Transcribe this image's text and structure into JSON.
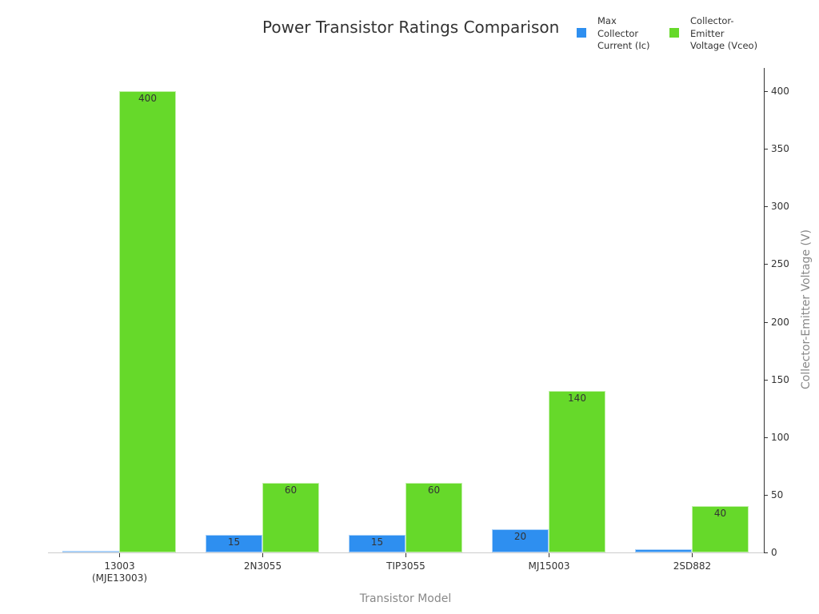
{
  "chart_data": {
    "type": "bar",
    "title": "Power Transistor Ratings Comparison",
    "xlabel": "Transistor Model",
    "ylabel": "Collector-Emitter Voltage (V)",
    "ylim": [
      0,
      420
    ],
    "yticks": [
      0,
      50,
      100,
      150,
      200,
      250,
      300,
      350,
      400
    ],
    "grid": false,
    "legend_position": "top-right",
    "categories": [
      "13003\n(MJE13003)",
      "2N3055",
      "TIP3055",
      "MJ15003",
      "2SD882"
    ],
    "series": [
      {
        "name": "Max Collector Current (Ic)",
        "color": "#2e8ff0",
        "values": [
          1.5,
          15,
          15,
          20,
          3
        ]
      },
      {
        "name": "Collector-Emitter Voltage (Vceo)",
        "color": "#66d92a",
        "values": [
          400,
          60,
          60,
          140,
          40
        ]
      }
    ]
  },
  "legend": {
    "items": [
      {
        "label": "Max\nCollector\nCurrent (Ic)",
        "color": "#2e8ff0"
      },
      {
        "label": "Collector-\nEmitter\nVoltage (Vceo)",
        "color": "#66d92a"
      }
    ]
  }
}
